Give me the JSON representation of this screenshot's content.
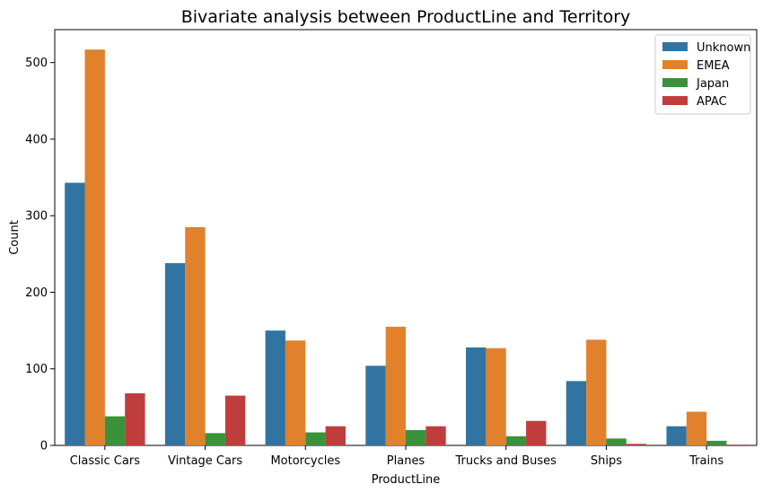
{
  "chart_data": {
    "type": "bar",
    "title": "Bivariate analysis between ProductLine and Territory",
    "xlabel": "ProductLine",
    "ylabel": "Count",
    "ylim": [
      0,
      543
    ],
    "yticks": [
      0,
      100,
      200,
      300,
      400,
      500
    ],
    "grid": false,
    "legend_position": "top-right",
    "categories": [
      "Classic Cars",
      "Vintage Cars",
      "Motorcycles",
      "Planes",
      "Trucks and Buses",
      "Ships",
      "Trains"
    ],
    "series": [
      {
        "name": "Unknown",
        "color": "#3274a1",
        "values": [
          343,
          238,
          150,
          104,
          128,
          84,
          25
        ]
      },
      {
        "name": "EMEA",
        "color": "#e1812c",
        "values": [
          517,
          285,
          137,
          155,
          127,
          138,
          44
        ]
      },
      {
        "name": "Japan",
        "color": "#3a923a",
        "values": [
          38,
          16,
          17,
          20,
          12,
          9,
          6
        ]
      },
      {
        "name": "APAC",
        "color": "#c03d3e",
        "values": [
          68,
          65,
          25,
          25,
          32,
          2,
          1
        ]
      }
    ]
  }
}
